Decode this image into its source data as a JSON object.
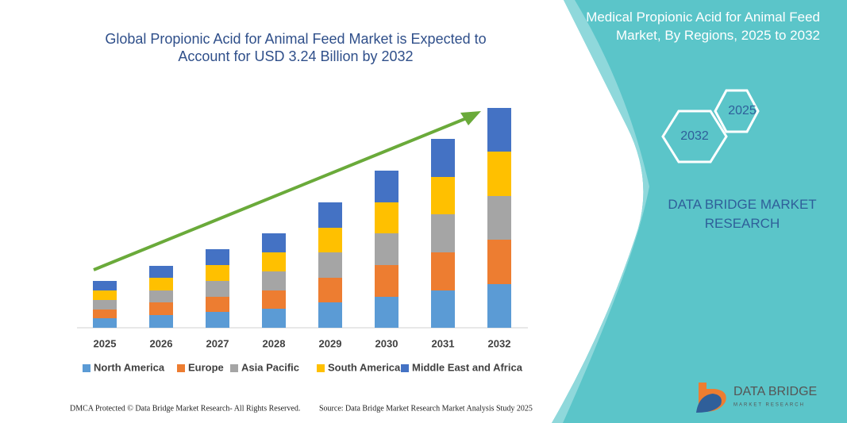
{
  "chart_data": {
    "type": "stacked-bar",
    "title": "Global Propionic Acid for Animal Feed Market is Expected to Account for USD 3.24 Billion by 2032",
    "categories": [
      "2025",
      "2026",
      "2027",
      "2028",
      "2029",
      "2030",
      "2031",
      "2032"
    ],
    "series": [
      {
        "name": "North America",
        "color": "#5b9bd5",
        "values": [
          12,
          16,
          20,
          24,
          32,
          39,
          47,
          55
        ]
      },
      {
        "name": "Europe",
        "color": "#ed7d31",
        "values": [
          11,
          16,
          19,
          23,
          31,
          40,
          48,
          56
        ]
      },
      {
        "name": "Asia Pacific",
        "color": "#a5a5a5",
        "values": [
          12,
          15,
          20,
          24,
          32,
          40,
          48,
          55
        ]
      },
      {
        "name": "South America",
        "color": "#ffc000",
        "values": [
          12,
          16,
          20,
          24,
          31,
          39,
          47,
          56
        ]
      },
      {
        "name": "Middle East and Africa",
        "color": "#4472c4",
        "values": [
          12,
          15,
          20,
          24,
          32,
          40,
          48,
          55
        ]
      }
    ],
    "ylim": [
      0,
      277
    ]
  },
  "panel": {
    "title": "Medical Propionic Acid for Animal Feed Market, By Regions, 2025 to 2032",
    "hex_top": "2025",
    "hex_bottom": "2032",
    "brand": "DATA BRIDGE MARKET RESEARCH"
  },
  "logo": {
    "name": "DATA BRIDGE",
    "tagline": "MARKET RESEARCH"
  },
  "footer": {
    "left": "DMCA Protected © Data Bridge Market Research- All Rights Reserved.",
    "right": "Source: Data Bridge Market Research Market Analysis Study 2025"
  }
}
